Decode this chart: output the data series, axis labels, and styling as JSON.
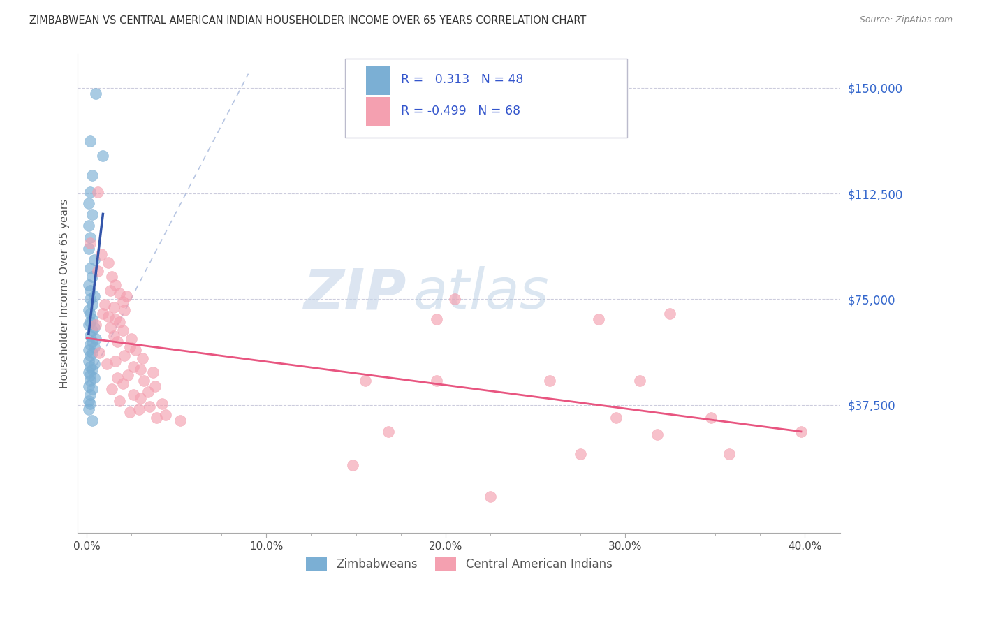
{
  "title": "ZIMBABWEAN VS CENTRAL AMERICAN INDIAN HOUSEHOLDER INCOME OVER 65 YEARS CORRELATION CHART",
  "source": "Source: ZipAtlas.com",
  "ylabel": "Householder Income Over 65 years",
  "xlabel_labels": [
    "0.0%",
    "10.0%",
    "20.0%",
    "30.0%",
    "40.0%"
  ],
  "xlabel_major_vals": [
    0.0,
    0.1,
    0.2,
    0.3,
    0.4
  ],
  "xlabel_minor_vals": [
    0.025,
    0.05,
    0.075,
    0.125,
    0.15,
    0.175,
    0.225,
    0.25,
    0.275,
    0.325,
    0.35,
    0.375
  ],
  "ytick_labels": [
    "$37,500",
    "$75,000",
    "$112,500",
    "$150,000"
  ],
  "ytick_vals": [
    37500,
    75000,
    112500,
    150000
  ],
  "xlim": [
    -0.005,
    0.42
  ],
  "ylim": [
    -8000,
    162000
  ],
  "r_blue": "0.313",
  "n_blue": 48,
  "r_pink": "-0.499",
  "n_pink": 68,
  "legend_label_blue": "Zimbabweans",
  "legend_label_pink": "Central American Indians",
  "watermark_zip": "ZIP",
  "watermark_atlas": "atlas",
  "blue_color": "#7BAFD4",
  "pink_color": "#F4A0B0",
  "blue_line_color": "#3355AA",
  "pink_line_color": "#E85580",
  "diag_color": "#AABBDD",
  "blue_scatter": [
    [
      0.002,
      131000
    ],
    [
      0.005,
      148000
    ],
    [
      0.009,
      126000
    ],
    [
      0.003,
      119000
    ],
    [
      0.002,
      113000
    ],
    [
      0.001,
      109000
    ],
    [
      0.003,
      105000
    ],
    [
      0.001,
      101000
    ],
    [
      0.002,
      97000
    ],
    [
      0.001,
      93000
    ],
    [
      0.004,
      89000
    ],
    [
      0.002,
      86000
    ],
    [
      0.003,
      83000
    ],
    [
      0.001,
      80000
    ],
    [
      0.002,
      78000
    ],
    [
      0.004,
      76000
    ],
    [
      0.002,
      75000
    ],
    [
      0.003,
      73000
    ],
    [
      0.001,
      71000
    ],
    [
      0.002,
      70000
    ],
    [
      0.003,
      68000
    ],
    [
      0.002,
      67000
    ],
    [
      0.001,
      66000
    ],
    [
      0.004,
      65000
    ],
    [
      0.003,
      64000
    ],
    [
      0.002,
      62000
    ],
    [
      0.005,
      61000
    ],
    [
      0.003,
      60000
    ],
    [
      0.002,
      59000
    ],
    [
      0.004,
      58000
    ],
    [
      0.001,
      57000
    ],
    [
      0.003,
      56000
    ],
    [
      0.002,
      55000
    ],
    [
      0.001,
      53000
    ],
    [
      0.004,
      52000
    ],
    [
      0.002,
      51000
    ],
    [
      0.003,
      50000
    ],
    [
      0.001,
      49000
    ],
    [
      0.002,
      48000
    ],
    [
      0.004,
      47000
    ],
    [
      0.002,
      46000
    ],
    [
      0.001,
      44000
    ],
    [
      0.003,
      43000
    ],
    [
      0.002,
      41000
    ],
    [
      0.001,
      39000
    ],
    [
      0.002,
      38000
    ],
    [
      0.001,
      36000
    ],
    [
      0.003,
      32000
    ]
  ],
  "pink_scatter": [
    [
      0.006,
      113000
    ],
    [
      0.002,
      95000
    ],
    [
      0.008,
      91000
    ],
    [
      0.012,
      88000
    ],
    [
      0.006,
      85000
    ],
    [
      0.014,
      83000
    ],
    [
      0.016,
      80000
    ],
    [
      0.013,
      78000
    ],
    [
      0.018,
      77000
    ],
    [
      0.022,
      76000
    ],
    [
      0.02,
      74000
    ],
    [
      0.01,
      73000
    ],
    [
      0.015,
      72000
    ],
    [
      0.021,
      71000
    ],
    [
      0.009,
      70000
    ],
    [
      0.012,
      69000
    ],
    [
      0.016,
      68000
    ],
    [
      0.018,
      67000
    ],
    [
      0.005,
      66000
    ],
    [
      0.013,
      65000
    ],
    [
      0.02,
      64000
    ],
    [
      0.015,
      62000
    ],
    [
      0.025,
      61000
    ],
    [
      0.017,
      60000
    ],
    [
      0.024,
      58000
    ],
    [
      0.027,
      57000
    ],
    [
      0.007,
      56000
    ],
    [
      0.021,
      55000
    ],
    [
      0.031,
      54000
    ],
    [
      0.016,
      53000
    ],
    [
      0.011,
      52000
    ],
    [
      0.026,
      51000
    ],
    [
      0.03,
      50000
    ],
    [
      0.037,
      49000
    ],
    [
      0.023,
      48000
    ],
    [
      0.017,
      47000
    ],
    [
      0.032,
      46000
    ],
    [
      0.02,
      45000
    ],
    [
      0.038,
      44000
    ],
    [
      0.014,
      43000
    ],
    [
      0.034,
      42000
    ],
    [
      0.026,
      41000
    ],
    [
      0.03,
      40000
    ],
    [
      0.018,
      39000
    ],
    [
      0.042,
      38000
    ],
    [
      0.035,
      37000
    ],
    [
      0.029,
      36000
    ],
    [
      0.024,
      35000
    ],
    [
      0.044,
      34000
    ],
    [
      0.039,
      33000
    ],
    [
      0.052,
      32000
    ],
    [
      0.155,
      46000
    ],
    [
      0.195,
      46000
    ],
    [
      0.168,
      28000
    ],
    [
      0.295,
      33000
    ],
    [
      0.348,
      33000
    ],
    [
      0.398,
      28000
    ],
    [
      0.275,
      20000
    ],
    [
      0.358,
      20000
    ],
    [
      0.318,
      27000
    ],
    [
      0.225,
      5000
    ],
    [
      0.148,
      16000
    ],
    [
      0.205,
      75000
    ],
    [
      0.325,
      70000
    ],
    [
      0.195,
      68000
    ],
    [
      0.285,
      68000
    ],
    [
      0.258,
      46000
    ],
    [
      0.308,
      46000
    ]
  ]
}
